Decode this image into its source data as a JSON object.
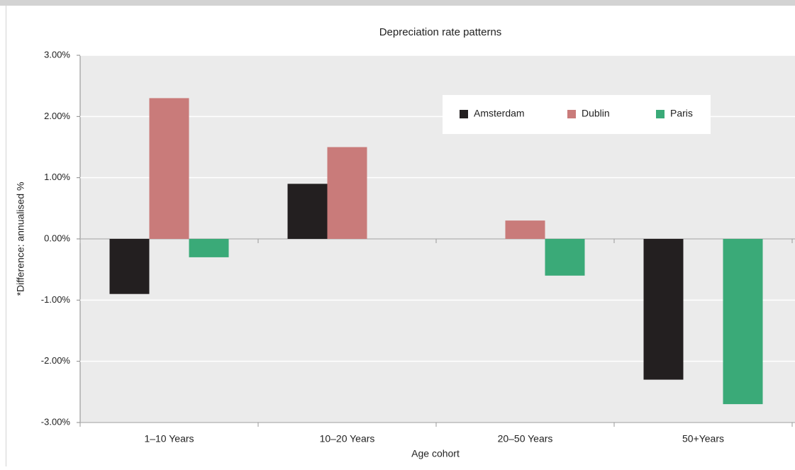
{
  "chart_data": {
    "type": "bar",
    "title": "Depreciation rate patterns",
    "x_label": "Age cohort",
    "y_label": "*Difference: annualised %",
    "categories": [
      "1–10 Years",
      "10–20 Years",
      "20–50 Years",
      "50+Years"
    ],
    "series": [
      {
        "name": "Amsterdam",
        "color": "#231f20",
        "values": [
          -0.9,
          0.9,
          null,
          -2.3
        ]
      },
      {
        "name": "Dublin",
        "color": "#c97b7a",
        "values": [
          2.3,
          1.5,
          0.3,
          null
        ]
      },
      {
        "name": "Paris",
        "color": "#3aaa78",
        "values": [
          -0.3,
          null,
          -0.6,
          -2.7
        ]
      }
    ],
    "ylim": [
      -3,
      3
    ],
    "yticks": [
      {
        "value": -3,
        "label": "-3.00%"
      },
      {
        "value": -2,
        "label": "-2.00%"
      },
      {
        "value": -1,
        "label": "-1.00%"
      },
      {
        "value": 0,
        "label": "0.00%"
      },
      {
        "value": 1,
        "label": "1.00%"
      },
      {
        "value": 2,
        "label": "2.00%"
      },
      {
        "value": 3,
        "label": "3.00%"
      }
    ],
    "grid": true,
    "legend": "top-right"
  }
}
